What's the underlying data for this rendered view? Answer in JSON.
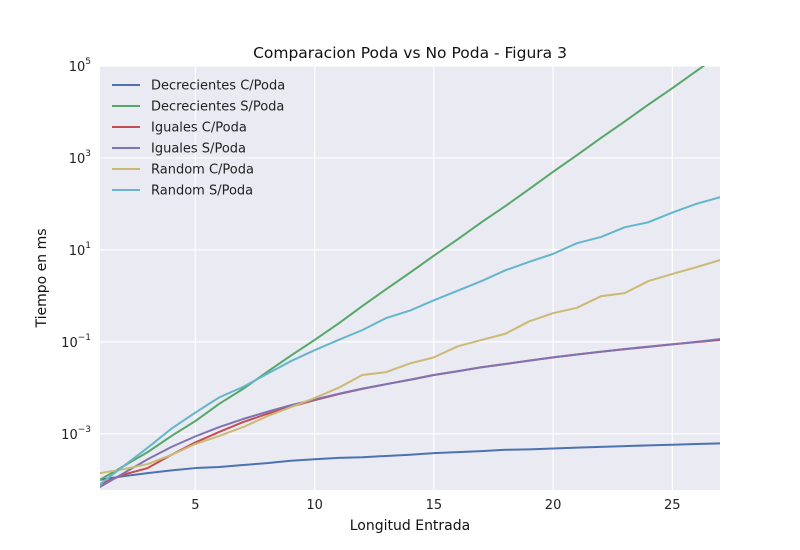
{
  "chart_data": {
    "type": "line",
    "title": "Comparacion Poda vs No Poda - Figura 3",
    "xlabel": "Longitud Entrada",
    "ylabel": "Tiempo en ms",
    "xlim": [
      1,
      27
    ],
    "ylim": [
      6e-05,
      100000
    ],
    "yscale": "log",
    "grid": true,
    "legend_position": "top-left",
    "x_ticks": [
      5,
      10,
      15,
      20,
      25
    ],
    "y_ticks": [
      {
        "value": 0.001,
        "base": "10",
        "exp": "−3"
      },
      {
        "value": 0.1,
        "base": "10",
        "exp": "−1"
      },
      {
        "value": 10,
        "base": "10",
        "exp": "1"
      },
      {
        "value": 1000,
        "base": "10",
        "exp": "3"
      },
      {
        "value": 100000,
        "base": "10",
        "exp": "5"
      }
    ],
    "x": [
      1,
      2,
      3,
      4,
      5,
      6,
      7,
      8,
      9,
      10,
      11,
      12,
      13,
      14,
      15,
      16,
      17,
      18,
      19,
      20,
      21,
      22,
      23,
      24,
      25,
      26,
      27
    ],
    "series": [
      {
        "name": "Decrecientes C/Poda",
        "color": "#4c72b0",
        "values": [
          0.0001,
          0.00012,
          0.00014,
          0.00016,
          0.00018,
          0.00019,
          0.00021,
          0.00023,
          0.00026,
          0.00028,
          0.0003,
          0.00031,
          0.00033,
          0.00035,
          0.00038,
          0.0004,
          0.00042,
          0.00045,
          0.00046,
          0.00048,
          0.0005,
          0.00052,
          0.00054,
          0.00056,
          0.00058,
          0.0006,
          0.00062
        ]
      },
      {
        "name": "Decrecientes S/Poda",
        "color": "#55a868",
        "values": [
          0.0001,
          0.0002,
          0.0004,
          0.0009,
          0.0019,
          0.0045,
          0.0095,
          0.022,
          0.05,
          0.11,
          0.25,
          0.6,
          1.4,
          3.2,
          7.5,
          17,
          40,
          90,
          210,
          500,
          1150,
          2700,
          6200,
          14500,
          33000,
          77000,
          180000
        ]
      },
      {
        "name": "Iguales C/Poda",
        "color": "#c44e52",
        "values": [
          8e-05,
          0.00013,
          0.00018,
          0.00035,
          0.00065,
          0.0011,
          0.0018,
          0.0027,
          0.0039,
          0.0054,
          0.0073,
          0.0095,
          0.012,
          0.015,
          0.019,
          0.023,
          0.028,
          0.033,
          0.039,
          0.046,
          0.053,
          0.061,
          0.069,
          0.078,
          0.088,
          0.099,
          0.11
        ]
      },
      {
        "name": "Iguales S/Poda",
        "color": "#8172b2",
        "values": [
          7e-05,
          0.00014,
          0.00028,
          0.00052,
          0.00088,
          0.0014,
          0.0021,
          0.003,
          0.0042,
          0.0056,
          0.0074,
          0.0096,
          0.012,
          0.015,
          0.019,
          0.023,
          0.028,
          0.033,
          0.039,
          0.046,
          0.053,
          0.061,
          0.07,
          0.079,
          0.089,
          0.1,
          0.115
        ]
      },
      {
        "name": "Random C/Poda",
        "color": "#ccb974",
        "values": [
          0.00014,
          0.00017,
          0.00022,
          0.00035,
          0.0006,
          0.0009,
          0.0014,
          0.0024,
          0.0038,
          0.006,
          0.01,
          0.019,
          0.022,
          0.034,
          0.046,
          0.08,
          0.11,
          0.15,
          0.28,
          0.42,
          0.55,
          0.98,
          1.15,
          2.1,
          3.0,
          4.2,
          6.0
        ]
      },
      {
        "name": "Random S/Poda",
        "color": "#64b5cd",
        "values": [
          8e-05,
          0.0002,
          0.0005,
          0.0013,
          0.0029,
          0.0062,
          0.0105,
          0.02,
          0.038,
          0.066,
          0.11,
          0.18,
          0.33,
          0.48,
          0.8,
          1.3,
          2.1,
          3.6,
          5.5,
          8.2,
          14,
          19,
          31,
          40,
          65,
          100,
          140
        ]
      }
    ]
  }
}
